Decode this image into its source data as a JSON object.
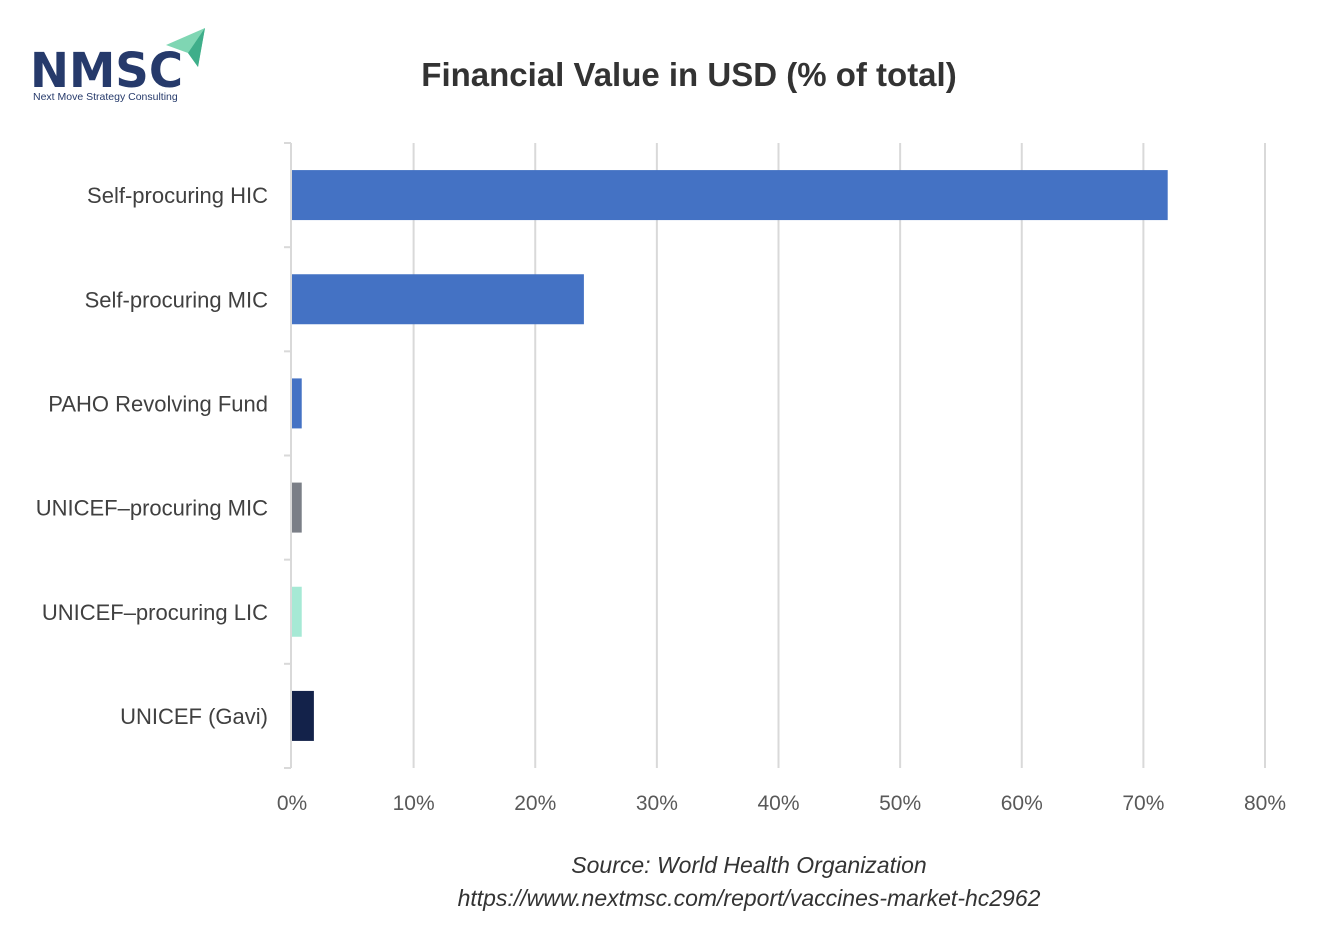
{
  "logo": {
    "brand": "NMSC",
    "tagline": "Next Move Strategy Consulting",
    "colors": {
      "text": "#263a6b",
      "arrow": "#7fd6b3"
    }
  },
  "source": {
    "line1": "Source: World Health Organization",
    "line2": "https://www.nextmsc.com/report/vaccines-market-hc2962"
  },
  "chart_data": {
    "type": "bar",
    "orientation": "horizontal",
    "title": "Financial Value in USD (% of total)",
    "xlabel": "",
    "ylabel": "",
    "categories": [
      "Self-procuring HIC",
      "Self-procuring MIC",
      "PAHO Revolving Fund",
      "UNICEF–procuring MIC",
      "UNICEF–procuring LIC",
      "UNICEF (Gavi)"
    ],
    "values": [
      72,
      24,
      0.8,
      0.8,
      0.8,
      1.8
    ],
    "bar_colors": [
      "#4472c4",
      "#4472c4",
      "#4472c4",
      "#7b7f87",
      "#a6e9d5",
      "#13224a"
    ],
    "xlim": [
      0,
      80
    ],
    "xticks": [
      0,
      10,
      20,
      30,
      40,
      50,
      60,
      70,
      80
    ],
    "xtick_labels": [
      "0%",
      "10%",
      "20%",
      "30%",
      "40%",
      "50%",
      "60%",
      "70%",
      "80%"
    ],
    "grid": "vertical",
    "gridline_color": "#d9d9d9",
    "legend": "none"
  }
}
